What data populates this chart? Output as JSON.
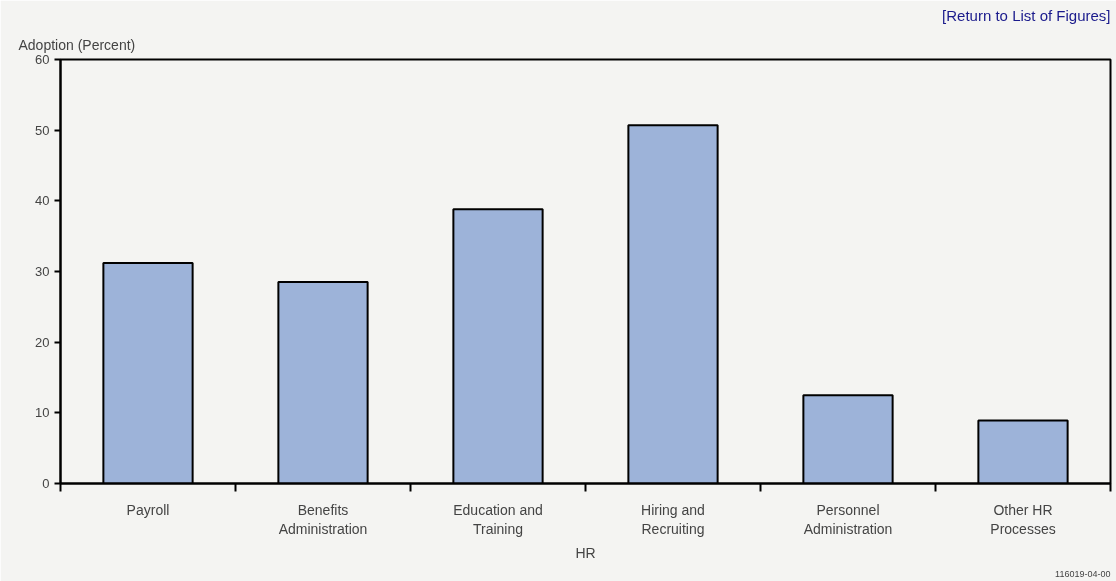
{
  "chart_data": {
    "type": "bar",
    "ylabel": "Adoption (Percent)",
    "xlabel": "HR",
    "categories": [
      "Payroll",
      "Benefits\nAdministration",
      "Education and\nTraining",
      "Hiring and\nRecruiting",
      "Personnel\nAdministration",
      "Other HR\nProcesses"
    ],
    "values": [
      31.2,
      28.5,
      38.8,
      50.7,
      12.5,
      8.9
    ],
    "color": "#9db3d9",
    "ylim": [
      0,
      60
    ],
    "yticks": [
      0,
      10,
      20,
      30,
      40,
      50,
      60
    ],
    "grid": false,
    "annotations": [
      "[Return to List of Figures]",
      "116019-04-00"
    ]
  }
}
